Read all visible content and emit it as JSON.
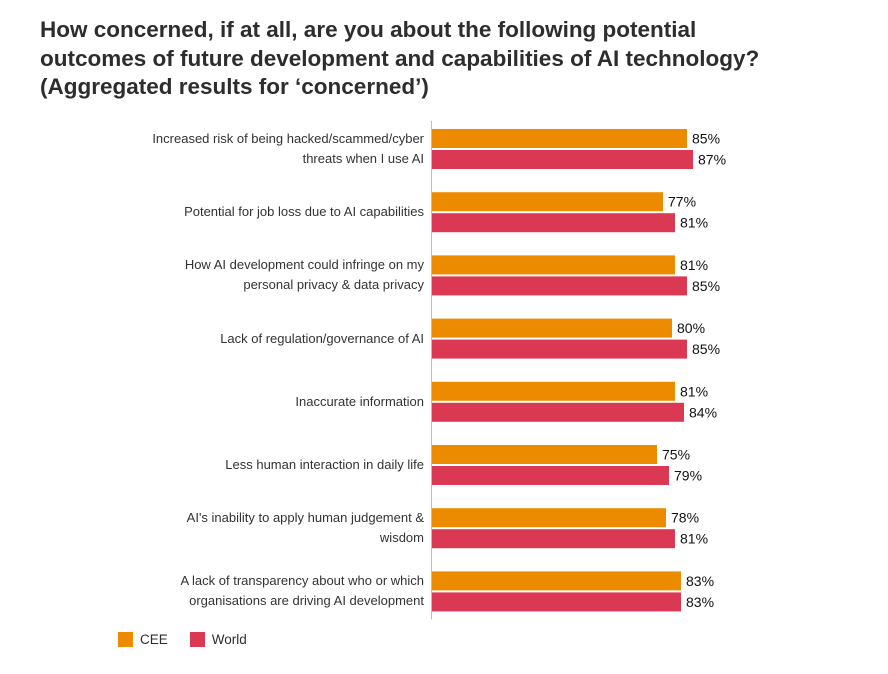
{
  "title": {
    "line1": "How concerned, if at all, are you about the following potential",
    "line2": "outcomes of future development and capabilities of AI technology?",
    "line3": "(Aggregated results for ‘concerned’)"
  },
  "colors": {
    "cee": "#ED8B00",
    "world": "#DB3853",
    "text": "#2d2d2d",
    "axis": "#bfbfbf"
  },
  "legend": [
    {
      "label": "CEE",
      "color": "#ED8B00"
    },
    {
      "label": "World",
      "color": "#DB3853"
    }
  ],
  "chart_data": {
    "type": "bar",
    "orientation": "horizontal",
    "categories": [
      [
        "Increased risk of being hacked/scammed/cyber",
        "threats when I use AI"
      ],
      [
        "Potential for job loss due to AI capabilities"
      ],
      [
        "How AI development could infringe on my",
        "personal privacy & data privacy"
      ],
      [
        "Lack of regulation/governance of AI"
      ],
      [
        "Inaccurate information"
      ],
      [
        "Less human interaction in daily life"
      ],
      [
        "AI's inability to apply human judgement &",
        "wisdom"
      ],
      [
        "A lack of transparency about who or which",
        "organisations are driving AI development"
      ]
    ],
    "series": [
      {
        "name": "CEE",
        "color": "#ED8B00",
        "values": [
          85,
          77,
          81,
          80,
          81,
          75,
          78,
          83
        ]
      },
      {
        "name": "World",
        "color": "#DB3853",
        "values": [
          87,
          81,
          85,
          85,
          84,
          79,
          81,
          83
        ]
      }
    ],
    "value_suffix": "%",
    "xlim": [
      0,
      100
    ],
    "grid": false,
    "legend_position": "bottom-left"
  }
}
